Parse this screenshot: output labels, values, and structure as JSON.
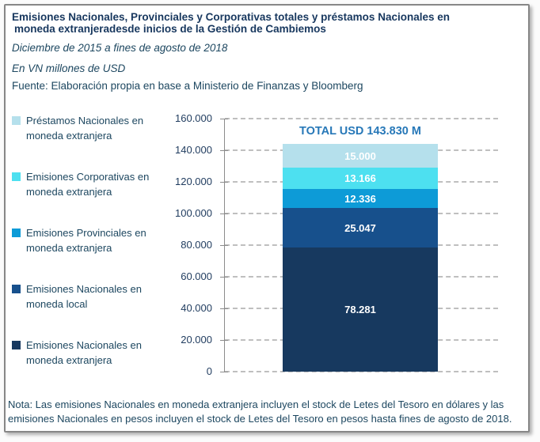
{
  "header": {
    "title_line1": "Emisiones Nacionales, Provinciales y Corporativas totales y préstamos Nacionales en",
    "title_line2": "moneda extranjeradesde inicios de la Gestión de Cambiemos",
    "subtitle_period": "Diciembre de 2015 a fines de agosto de 2018",
    "subtitle_units": "En VN millones de USD",
    "source": "Fuente: Elaboración propia en base a Ministerio de Finanzas y Bloomberg"
  },
  "legend": {
    "position": "left",
    "items": [
      {
        "label": "Préstamos Nacionales en moneda extranjera",
        "color": "#B5E0EC"
      },
      {
        "label": "Emisiones Corporativas en moneda extranjera",
        "color": "#4DE0F0"
      },
      {
        "label": "Emisiones Provinciales en moneda extranjera",
        "color": "#0D9BD7"
      },
      {
        "label": "Emisiones Nacionales en moneda local",
        "color": "#17508C"
      },
      {
        "label": "Emisiones Nacionales en moneda extranjera",
        "color": "#17395F"
      }
    ]
  },
  "chart_data": {
    "type": "bar",
    "stacked": true,
    "title": "Emisiones Nacionales, Provinciales y Corporativas totales y préstamos Nacionales en moneda extranjeradesde inicios de la Gestión de Cambiemos",
    "subtitle": "Diciembre de 2015 a fines de agosto de 2018",
    "units": "En VN millones de USD",
    "annotation": "TOTAL USD 143.830 M",
    "total": 143830,
    "categories": [
      "Total"
    ],
    "series": [
      {
        "name": "Emisiones Nacionales en moneda extranjera",
        "values": [
          78281
        ],
        "label": "78.281",
        "color": "#17395F"
      },
      {
        "name": "Emisiones Nacionales en moneda local",
        "values": [
          25047
        ],
        "label": "25.047",
        "color": "#17508C"
      },
      {
        "name": "Emisiones Provinciales en moneda extranjera",
        "values": [
          12336
        ],
        "label": "12.336",
        "color": "#0D9BD7"
      },
      {
        "name": "Emisiones Corporativas en moneda extranjera",
        "values": [
          13166
        ],
        "label": "13.166",
        "color": "#4DE0F0"
      },
      {
        "name": "Préstamos Nacionales en moneda extranjera",
        "values": [
          15000
        ],
        "label": "15.000",
        "color": "#B5E0EC"
      }
    ],
    "y_axis": {
      "min": 0,
      "max": 160000,
      "step": 20000,
      "tick_labels": [
        "160.000",
        "140.000",
        "120.000",
        "100.000",
        "80.000",
        "60.000",
        "40.000",
        "20.000",
        "0"
      ]
    },
    "grid": "horizontal-dashed",
    "legend_position": "left"
  },
  "note": "Nota: Las emisiones Nacionales en moneda extranjera incluyen el stock de Letes del Tesoro en dólares y las emisiones Nacionales en pesos incluyen el stock de Letes del Tesoro en pesos hasta fines de agosto de 2018.",
  "colors": {
    "title_text": "#17375E",
    "body_text": "#1D4760",
    "annotation_text": "#2778B8",
    "axis": "#8C8C8C",
    "gridline": "#BFBFBF",
    "bar_value_text": "#FFFFFF",
    "card_border": "#878787",
    "background": "#FFFFFF"
  }
}
